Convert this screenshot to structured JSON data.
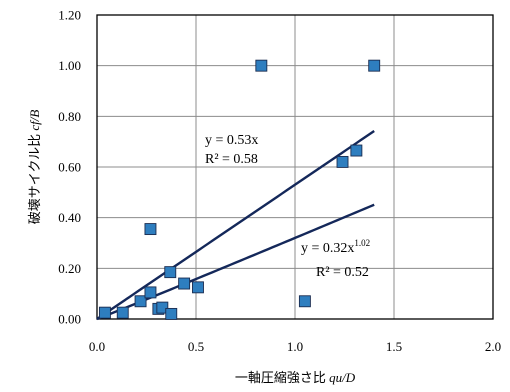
{
  "chart_data": {
    "type": "scatter",
    "title": "",
    "xlabel": "一軸圧縮強さ比 qu/D",
    "xlabel_prefix": "一軸圧縮強さ比 ",
    "xlabel_italic": "qu/D",
    "ylabel": "破壊サイクル比 cf/B",
    "ylabel_prefix": "破壊サイクル比 ",
    "ylabel_italic": "cf/B",
    "xlim": [
      0.0,
      2.0
    ],
    "ylim": [
      0.0,
      1.2
    ],
    "xticks": [
      0.0,
      0.5,
      1.0,
      1.5,
      2.0
    ],
    "yticks": [
      0.0,
      0.2,
      0.4,
      0.6,
      0.8,
      1.0,
      1.2
    ],
    "xtick_labels": [
      "0.0",
      "0.5",
      "1.0",
      "1.5",
      "2.0"
    ],
    "ytick_labels": [
      "0.00",
      "0.20",
      "0.40",
      "0.60",
      "0.80",
      "1.00",
      "1.20"
    ],
    "grid": true,
    "legend": false,
    "colors": {
      "marker": "#2e7ebf",
      "trend": "#14285a",
      "grid": "#8c8c8c"
    },
    "points": [
      {
        "x": 0.04,
        "y": 0.025
      },
      {
        "x": 0.13,
        "y": 0.025
      },
      {
        "x": 0.22,
        "y": 0.07
      },
      {
        "x": 0.27,
        "y": 0.105
      },
      {
        "x": 0.27,
        "y": 0.355
      },
      {
        "x": 0.31,
        "y": 0.04
      },
      {
        "x": 0.33,
        "y": 0.045
      },
      {
        "x": 0.37,
        "y": 0.185
      },
      {
        "x": 0.375,
        "y": 0.02
      },
      {
        "x": 0.44,
        "y": 0.14
      },
      {
        "x": 0.51,
        "y": 0.125
      },
      {
        "x": 0.83,
        "y": 1.0
      },
      {
        "x": 1.05,
        "y": 0.07
      },
      {
        "x": 1.24,
        "y": 0.62
      },
      {
        "x": 1.31,
        "y": 0.665
      },
      {
        "x": 1.4,
        "y": 1.0
      }
    ],
    "trendlines": [
      {
        "form": "linear",
        "a": 0.53,
        "b": 1.0,
        "x_range": [
          0.0,
          1.4
        ],
        "equation_base": "y = 0.53x",
        "equation_exp": "",
        "r2": "R² = 0.58"
      },
      {
        "form": "power",
        "a": 0.32,
        "b": 1.02,
        "x_range": [
          0.0,
          1.4
        ],
        "equation_base": "y = 0.32x",
        "equation_exp": "1.02",
        "r2": "R² = 0.52"
      }
    ]
  }
}
